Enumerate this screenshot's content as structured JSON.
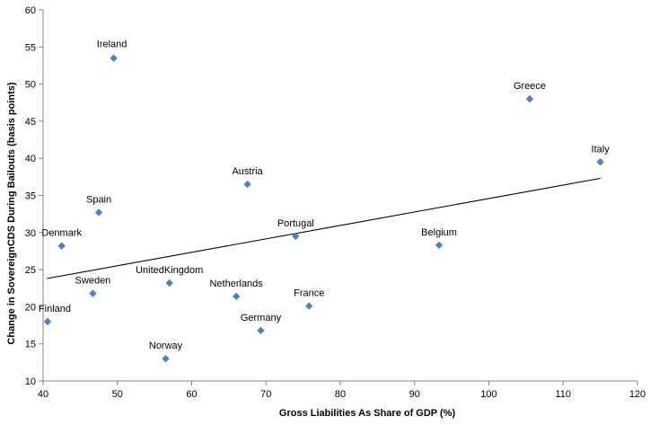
{
  "chart_data": {
    "type": "scatter",
    "title": "",
    "xlabel": "Gross Liabilities  As Share of GDP (%)",
    "ylabel": "Change in SovereignCDS During Bailouts (basis points)",
    "xlim": [
      40,
      120
    ],
    "ylim": [
      10,
      60
    ],
    "xticks": [
      40,
      50,
      60,
      70,
      80,
      90,
      100,
      110,
      120
    ],
    "yticks": [
      10,
      15,
      20,
      25,
      30,
      35,
      40,
      45,
      50,
      55,
      60
    ],
    "grid": false,
    "marker_color": "#4F81BD",
    "trendline": {
      "x": [
        40.5,
        115
      ],
      "y": [
        23.8,
        37.3
      ]
    },
    "points": [
      {
        "label": "Ireland",
        "x": 49.5,
        "y": 53.5
      },
      {
        "label": "Greece",
        "x": 105.5,
        "y": 48.0
      },
      {
        "label": "Italy",
        "x": 115.0,
        "y": 39.5
      },
      {
        "label": "Austria",
        "x": 67.5,
        "y": 36.5
      },
      {
        "label": "Spain",
        "x": 47.5,
        "y": 32.7
      },
      {
        "label": "Portugal",
        "x": 74.0,
        "y": 29.5
      },
      {
        "label": "Denmark",
        "x": 42.5,
        "y": 28.2
      },
      {
        "label": "Belgium",
        "x": 93.3,
        "y": 28.3
      },
      {
        "label": "UnitedKingdom",
        "x": 57.0,
        "y": 23.2
      },
      {
        "label": "Sweden",
        "x": 46.7,
        "y": 21.8
      },
      {
        "label": "Netherlands",
        "x": 66.0,
        "y": 21.4
      },
      {
        "label": "France",
        "x": 75.8,
        "y": 20.1
      },
      {
        "label": "Finland",
        "x": 40.6,
        "y": 18.0
      },
      {
        "label": "Germany",
        "x": 69.3,
        "y": 16.8
      },
      {
        "label": "Norway",
        "x": 56.5,
        "y": 13.0
      }
    ]
  }
}
